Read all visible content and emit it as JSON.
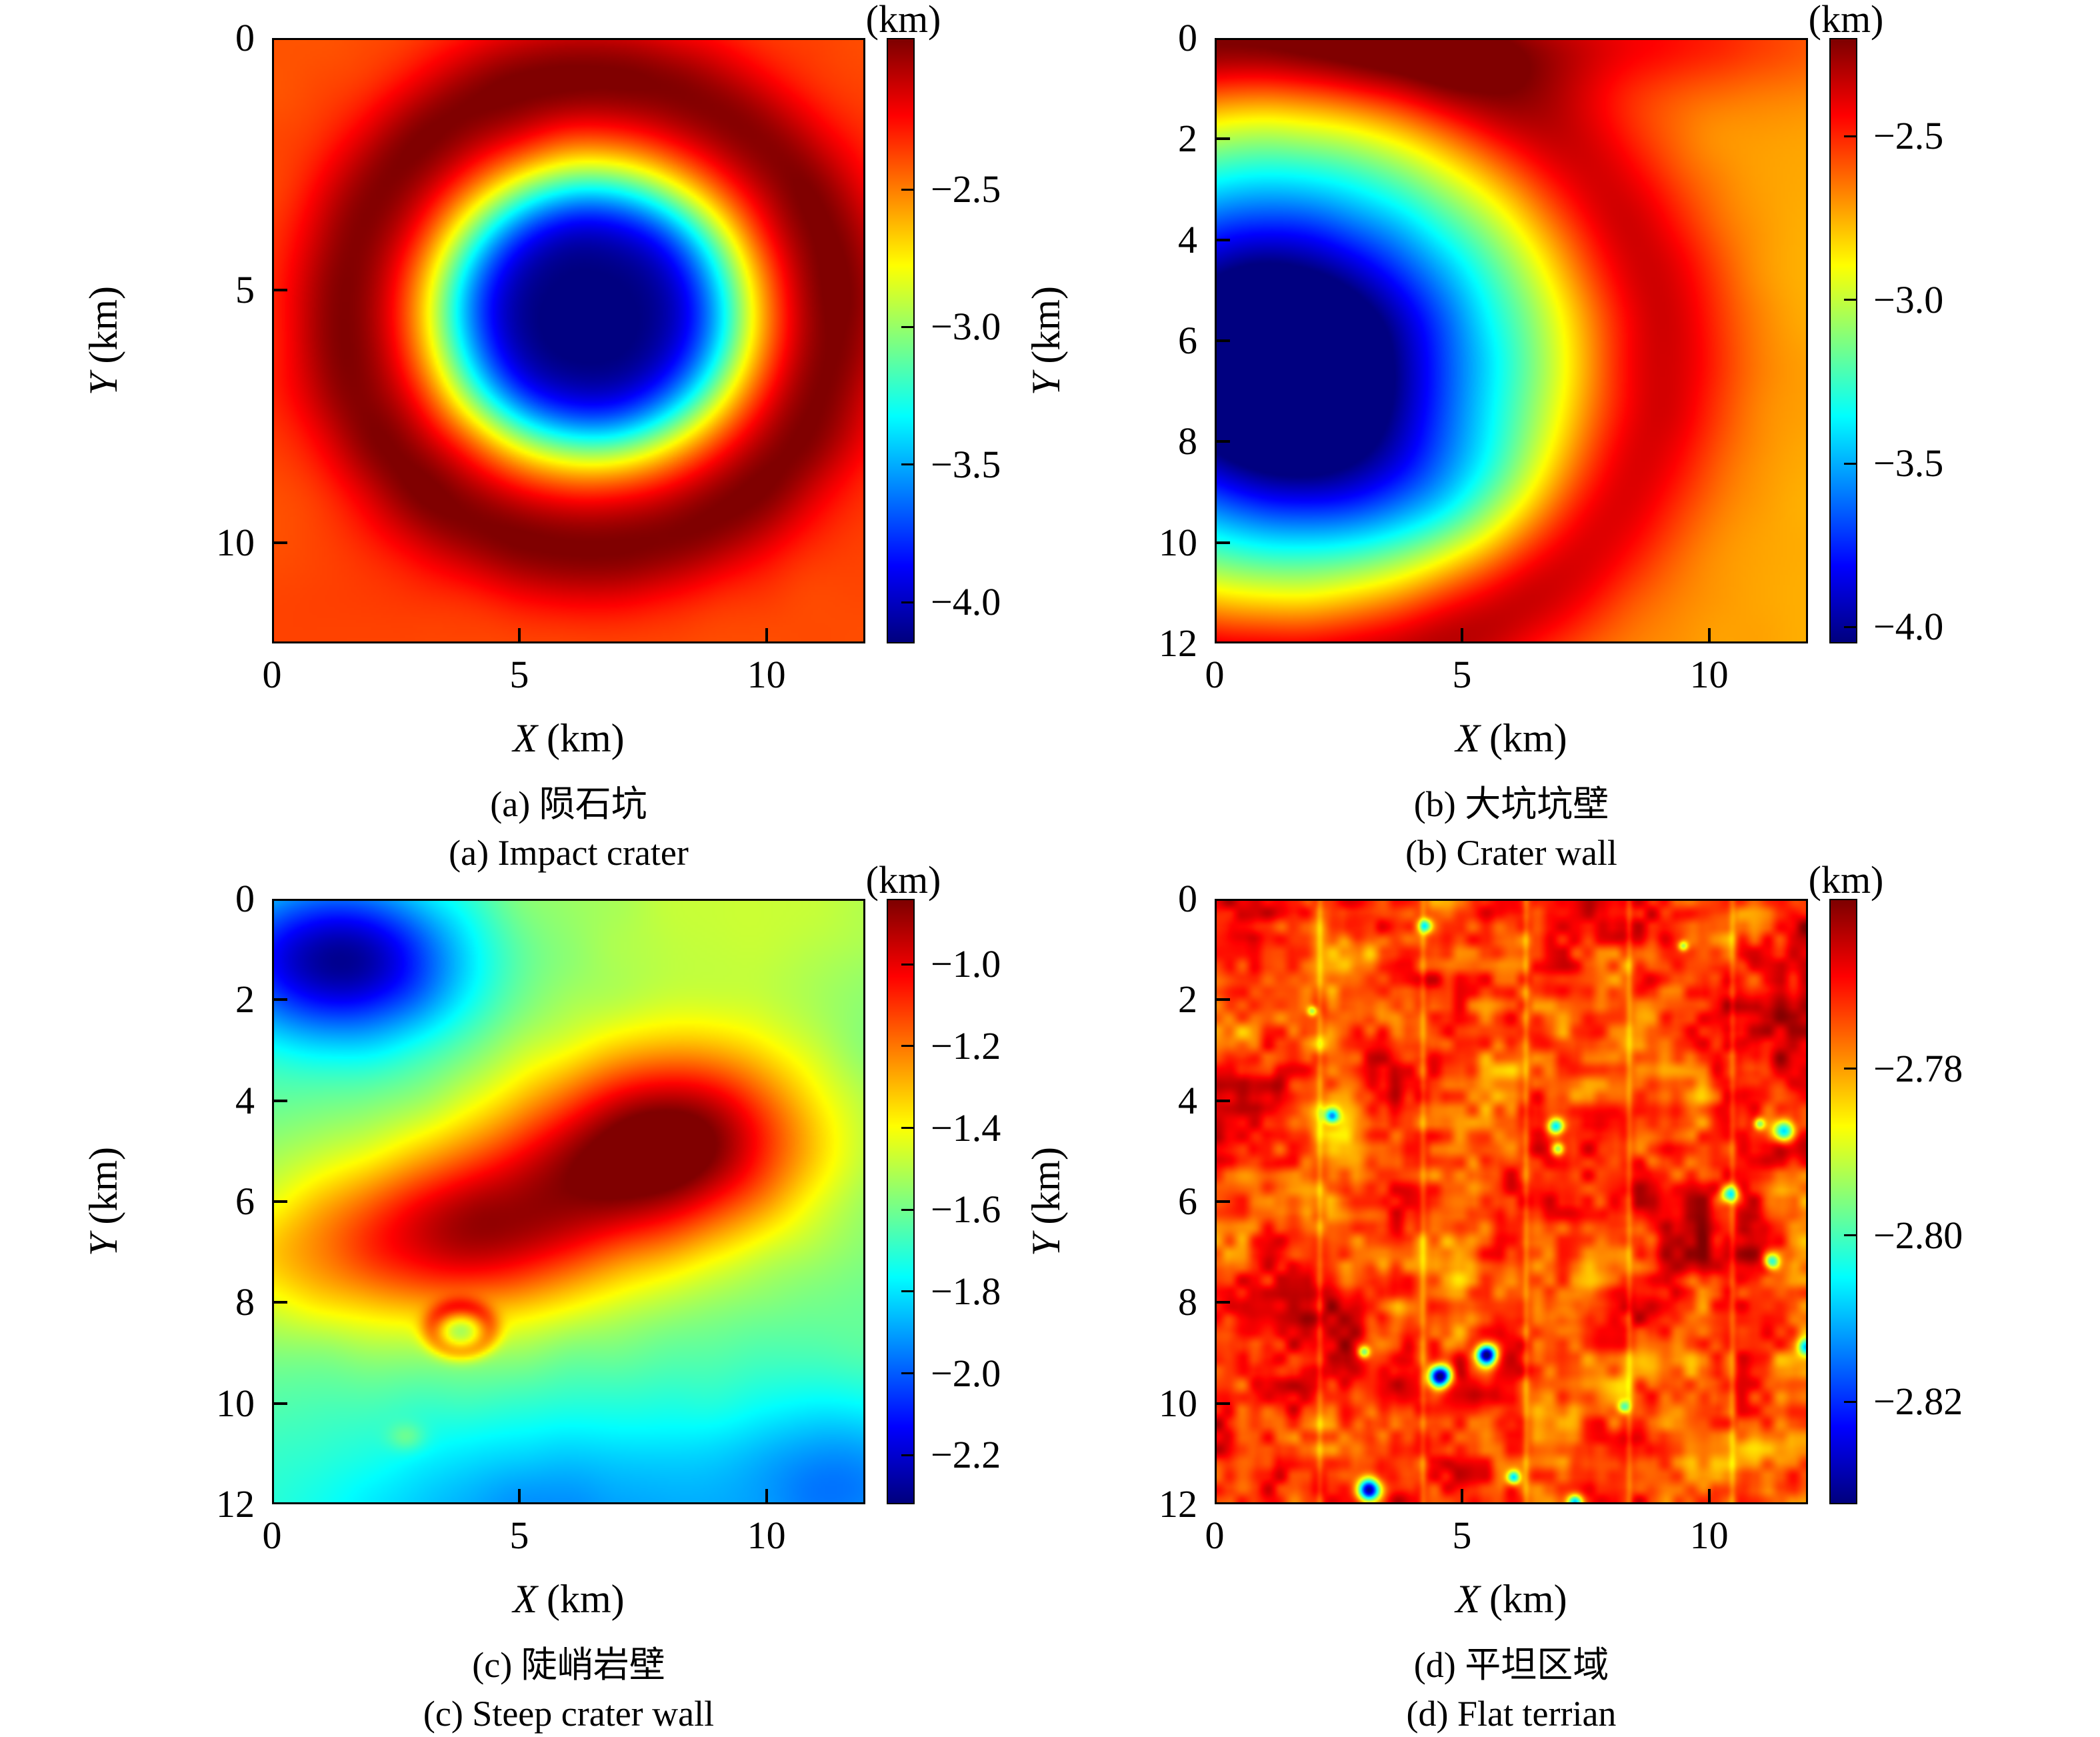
{
  "figure": {
    "background": "#ffffff",
    "colormap": "jet"
  },
  "chart_data": [
    {
      "type": "heatmap",
      "panel": "a",
      "caption_zh": "(a) 陨石坑",
      "caption_en": "(a) Impact crater",
      "x_axis": {
        "label_var": "X",
        "label_unit": "(km)",
        "range": [
          0,
          12
        ],
        "ticks": [
          {
            "value": 0,
            "label": "0"
          },
          {
            "value": 5,
            "label": "5"
          },
          {
            "value": 10,
            "label": "10"
          }
        ]
      },
      "y_axis": {
        "label_var": "Y",
        "label_unit": "(km)",
        "range": [
          0,
          12
        ],
        "ticks": [
          {
            "value": 0,
            "label": "0"
          },
          {
            "value": 5,
            "label": "5"
          },
          {
            "value": 10,
            "label": "10"
          }
        ]
      },
      "colorbar": {
        "unit": "(km)",
        "vmax": -1.95,
        "vmin": -4.15,
        "ticks": [
          {
            "value": -2.5,
            "label": "−2.5"
          },
          {
            "value": -3.0,
            "label": "−3.0"
          },
          {
            "value": -3.5,
            "label": "−3.5"
          },
          {
            "value": -4.0,
            "label": "−4.0"
          }
        ]
      },
      "field": {
        "res": 240,
        "base": -2.38,
        "gaussians": [
          {
            "cx": 6.45,
            "cy": 5.45,
            "sx": 3.05,
            "sy": 2.78,
            "amp": -1.78,
            "p": 4
          }
        ],
        "rings": [
          {
            "cx": 6.45,
            "cy": 5.45,
            "ax": 1.06,
            "ay": 1.0,
            "r": 4.7,
            "w": 1.15,
            "amp": 0.43
          }
        ],
        "noise": {
          "seed": 7,
          "amp": 0.022,
          "octaves": [
            {
              "scale": 5,
              "w": 1.0
            },
            {
              "scale": 12,
              "w": 0.5
            }
          ]
        }
      }
    },
    {
      "type": "heatmap",
      "panel": "b",
      "caption_zh": "(b) 大坑坑壁",
      "caption_en": "(b) Crater wall",
      "x_axis": {
        "label_var": "X",
        "label_unit": "(km)",
        "range": [
          0,
          12
        ],
        "ticks": [
          {
            "value": 0,
            "label": "0"
          },
          {
            "value": 5,
            "label": "5"
          },
          {
            "value": 10,
            "label": "10"
          }
        ]
      },
      "y_axis": {
        "label_var": "Y",
        "label_unit": "(km)",
        "range": [
          0,
          12
        ],
        "ticks": [
          {
            "value": 0,
            "label": "0"
          },
          {
            "value": 2,
            "label": "2"
          },
          {
            "value": 4,
            "label": "4"
          },
          {
            "value": 6,
            "label": "6"
          },
          {
            "value": 8,
            "label": "8"
          },
          {
            "value": 10,
            "label": "10"
          },
          {
            "value": 12,
            "label": "12"
          }
        ]
      },
      "colorbar": {
        "unit": "(km)",
        "vmax": -2.2,
        "vmin": -4.05,
        "ticks": [
          {
            "value": -2.5,
            "label": "−2.5"
          },
          {
            "value": -3.0,
            "label": "−3.0"
          },
          {
            "value": -3.5,
            "label": "−3.5"
          },
          {
            "value": -4.0,
            "label": "−4.0"
          }
        ]
      },
      "field": {
        "res": 240,
        "base": -2.62,
        "tilt": {
          "x": -0.01,
          "y": 0
        },
        "gaussians": [
          {
            "cx": 1.0,
            "cy": 6.3,
            "sx": 5.0,
            "sy": 4.0,
            "amp": -1.6,
            "p": 2.2
          },
          {
            "cx": 1.6,
            "cy": 7.0,
            "sx": 2.3,
            "sy": 2.3,
            "amp": -0.3,
            "p": 2
          },
          {
            "cx": 7.0,
            "cy": 0.0,
            "sx": 6.0,
            "sy": 1.2,
            "amp": 0.3,
            "p": 2
          },
          {
            "cx": 4.0,
            "cy": 9.0,
            "sx": 2.8,
            "sy": 1.5,
            "amp": -0.22,
            "p": 2
          }
        ],
        "rings": [
          {
            "cx": 1.0,
            "cy": 6.3,
            "ax": 1.25,
            "ay": 1.0,
            "r": 6.3,
            "w": 1.35,
            "amp": 0.45
          }
        ],
        "noise": {
          "seed": 21,
          "amp": 0.015,
          "octaves": [
            {
              "scale": 5,
              "w": 1.0
            },
            {
              "scale": 13,
              "w": 0.5
            }
          ]
        }
      }
    },
    {
      "type": "heatmap",
      "panel": "c",
      "caption_zh": "(c) 陡峭岩壁",
      "caption_en": "(c) Steep crater wall",
      "x_axis": {
        "label_var": "X",
        "label_unit": "(km)",
        "range": [
          0,
          12
        ],
        "ticks": [
          {
            "value": 0,
            "label": "0"
          },
          {
            "value": 5,
            "label": "5"
          },
          {
            "value": 10,
            "label": "10"
          }
        ]
      },
      "y_axis": {
        "label_var": "Y",
        "label_unit": "(km)",
        "range": [
          0,
          12
        ],
        "ticks": [
          {
            "value": 0,
            "label": "0"
          },
          {
            "value": 2,
            "label": "2"
          },
          {
            "value": 4,
            "label": "4"
          },
          {
            "value": 6,
            "label": "6"
          },
          {
            "value": 8,
            "label": "8"
          },
          {
            "value": 10,
            "label": "10"
          },
          {
            "value": 12,
            "label": "12"
          }
        ]
      },
      "colorbar": {
        "unit": "(km)",
        "vmax": -0.84,
        "vmin": -2.32,
        "ticks": [
          {
            "value": -1.0,
            "label": "−1.0"
          },
          {
            "value": -1.2,
            "label": "−1.2"
          },
          {
            "value": -1.4,
            "label": "−1.4"
          },
          {
            "value": -1.6,
            "label": "−1.6"
          },
          {
            "value": -1.8,
            "label": "−1.8"
          },
          {
            "value": -2.0,
            "label": "−2.0"
          },
          {
            "value": -2.2,
            "label": "−2.2"
          }
        ]
      },
      "field": {
        "res": 240,
        "base": -1.62,
        "gaussians": [
          {
            "cx": 8.2,
            "cy": 4.7,
            "sx": 2.9,
            "sy": 1.9,
            "amp": 0.75,
            "p": 2
          },
          {
            "cx": 3.6,
            "cy": 6.8,
            "sx": 3.0,
            "sy": 1.7,
            "amp": 0.55,
            "p": 2
          },
          {
            "cx": 6.0,
            "cy": 5.8,
            "sx": 3.4,
            "sy": 1.8,
            "amp": 0.28,
            "p": 2
          },
          {
            "cx": 1.4,
            "cy": 1.2,
            "sx": 2.5,
            "sy": 1.6,
            "amp": -0.7,
            "p": 2
          },
          {
            "cx": 9.0,
            "cy": 0.0,
            "sx": 5.0,
            "sy": 2.2,
            "amp": 0.15,
            "p": 2
          },
          {
            "cx": 0.0,
            "cy": 7.2,
            "sx": 2.0,
            "sy": 1.5,
            "amp": 0.18,
            "p": 2
          },
          {
            "cx": 6.0,
            "cy": 12.5,
            "sx": 5.5,
            "sy": 2.4,
            "amp": -0.3,
            "p": 2
          },
          {
            "cx": 11.8,
            "cy": 11.5,
            "sx": 2.2,
            "sy": 1.8,
            "amp": -0.25,
            "p": 2
          },
          {
            "cx": 3.8,
            "cy": 8.55,
            "sx": 0.28,
            "sy": 0.2,
            "amp": -0.1,
            "p": 2
          },
          {
            "cx": 2.7,
            "cy": 10.7,
            "sx": 0.38,
            "sy": 0.28,
            "amp": 0.12,
            "p": 2
          }
        ],
        "rings": [
          {
            "cx": 3.8,
            "cy": 8.55,
            "ax": 1.3,
            "ay": 1.0,
            "r": 0.45,
            "w": 0.2,
            "amp": 0.24
          }
        ],
        "noise": {
          "seed": 33,
          "amp": 0.02,
          "octaves": [
            {
              "scale": 5,
              "w": 1.0
            },
            {
              "scale": 12,
              "w": 0.5
            }
          ]
        }
      }
    },
    {
      "type": "heatmap",
      "panel": "d",
      "caption_zh": "(d) 平坦区域",
      "caption_en": "(d) Flat terrian",
      "x_axis": {
        "label_var": "X",
        "label_unit": "(km)",
        "range": [
          0,
          12
        ],
        "ticks": [
          {
            "value": 0,
            "label": "0"
          },
          {
            "value": 5,
            "label": "5"
          },
          {
            "value": 10,
            "label": "10"
          }
        ]
      },
      "y_axis": {
        "label_var": "Y",
        "label_unit": "(km)",
        "range": [
          0,
          12
        ],
        "ticks": [
          {
            "value": 0,
            "label": "0"
          },
          {
            "value": 2,
            "label": "2"
          },
          {
            "value": 4,
            "label": "4"
          },
          {
            "value": 6,
            "label": "6"
          },
          {
            "value": 8,
            "label": "8"
          },
          {
            "value": 10,
            "label": "10"
          },
          {
            "value": 12,
            "label": "12"
          }
        ]
      },
      "colorbar": {
        "unit": "(km)",
        "vmax": -2.7596,
        "vmin": -2.8323,
        "ticks": [
          {
            "value": -2.78,
            "label": "−2.78"
          },
          {
            "value": -2.8,
            "label": "−2.80"
          },
          {
            "value": -2.82,
            "label": "−2.82"
          }
        ]
      },
      "field": {
        "res": 480,
        "base": -2.7725,
        "gaussians": [],
        "rings": [],
        "noise": {
          "seed": 44,
          "amp": 0.011,
          "octaves": [
            {
              "scale": 5,
              "w": 0.3
            },
            {
              "scale": 10,
              "w": 0.55
            },
            {
              "scale": 22,
              "w": 0.5
            },
            {
              "scale": 46,
              "w": 0.4
            }
          ]
        },
        "stripes": {
          "period": 2.1,
          "width": 0.07,
          "amp": -0.0045,
          "kmin": 1,
          "kmax": 5
        },
        "spots": [
          {
            "x": 4.25,
            "y": 0.5,
            "r": 0.14,
            "amp": -0.028
          },
          {
            "x": 2.35,
            "y": 4.3,
            "r": 0.14,
            "amp": -0.03
          },
          {
            "x": 6.9,
            "y": 4.5,
            "r": 0.16,
            "amp": -0.035
          },
          {
            "x": 6.95,
            "y": 4.95,
            "r": 0.13,
            "amp": -0.025
          },
          {
            "x": 11.55,
            "y": 4.6,
            "r": 0.22,
            "amp": -0.04
          },
          {
            "x": 11.05,
            "y": 4.45,
            "r": 0.12,
            "amp": -0.025
          },
          {
            "x": 10.45,
            "y": 5.85,
            "r": 0.18,
            "amp": -0.035
          },
          {
            "x": 11.3,
            "y": 7.2,
            "r": 0.16,
            "amp": -0.033
          },
          {
            "x": 12.0,
            "y": 8.9,
            "r": 0.16,
            "amp": -0.03
          },
          {
            "x": 5.5,
            "y": 9.05,
            "r": 0.2,
            "amp": -0.06
          },
          {
            "x": 4.55,
            "y": 9.5,
            "r": 0.22,
            "amp": -0.065
          },
          {
            "x": 3.0,
            "y": 9.0,
            "r": 0.12,
            "amp": -0.025
          },
          {
            "x": 8.3,
            "y": 10.1,
            "r": 0.12,
            "amp": -0.022
          },
          {
            "x": 6.05,
            "y": 11.5,
            "r": 0.13,
            "amp": -0.03
          },
          {
            "x": 3.1,
            "y": 11.75,
            "r": 0.22,
            "amp": -0.06
          },
          {
            "x": 7.3,
            "y": 12.0,
            "r": 0.15,
            "amp": -0.035
          },
          {
            "x": 1.95,
            "y": 2.2,
            "r": 0.1,
            "amp": -0.02
          },
          {
            "x": 9.5,
            "y": 0.9,
            "r": 0.1,
            "amp": -0.02
          }
        ]
      }
    }
  ]
}
